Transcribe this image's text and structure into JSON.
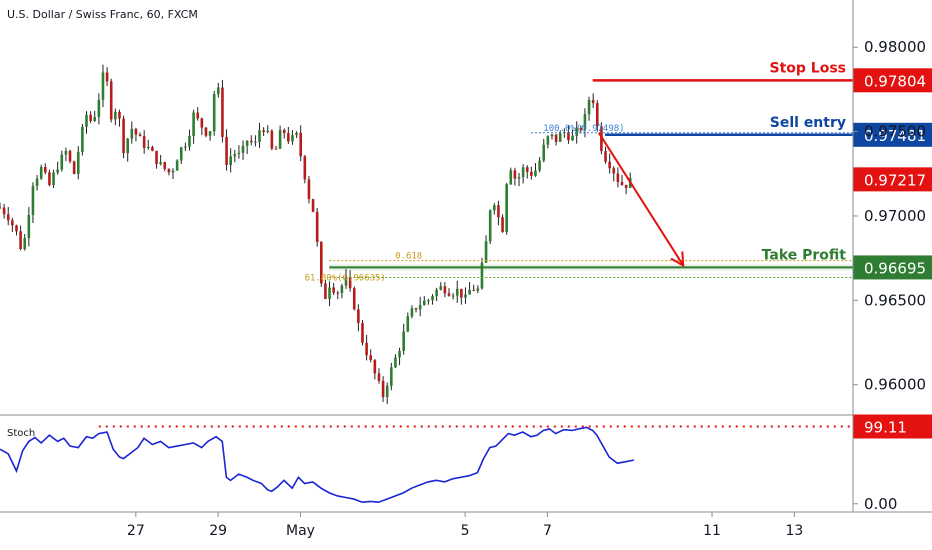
{
  "header": {
    "title": "U.S. Dollar / Swiss Franc, 60, FXCM"
  },
  "colors": {
    "bull": "#2e7d32",
    "bear": "#b71c1c",
    "stop": "#e3110f",
    "entry": "#0d47a1",
    "profit": "#2e7d32",
    "fib": "#c79a16",
    "stoch": "#1a25d4",
    "current": "#e3110f"
  },
  "chart_data": [
    {
      "type": "candlestick",
      "title": "U.S. Dollar / Swiss Franc, 60, FXCM",
      "ylim": [
        0.9585,
        0.9828
      ],
      "y_ticks": [
        "0.98000",
        "0.97500",
        "0.97000",
        "0.96500",
        "0.96000"
      ],
      "y_tick_values": [
        0.98,
        0.975,
        0.97,
        0.965,
        0.96
      ],
      "x_ticks": [
        "27",
        "29",
        "May",
        "5",
        "7",
        "11",
        "13"
      ],
      "x_tick_positions": [
        26.9,
        28.9,
        30.9,
        34.9,
        36.9,
        40.9,
        42.9
      ],
      "x_range": [
        23.6,
        44.3
      ],
      "close_path": [
        [
          23.6,
          0.9705
        ],
        [
          23.8,
          0.97
        ],
        [
          24.0,
          0.969
        ],
        [
          24.15,
          0.9678
        ],
        [
          24.4,
          0.972
        ],
        [
          24.6,
          0.9728
        ],
        [
          24.8,
          0.9718
        ],
        [
          25.0,
          0.973
        ],
        [
          25.2,
          0.9738
        ],
        [
          25.4,
          0.9725
        ],
        [
          25.55,
          0.9745
        ],
        [
          25.7,
          0.976
        ],
        [
          25.85,
          0.9755
        ],
        [
          26.0,
          0.977
        ],
        [
          26.15,
          0.9788
        ],
        [
          26.3,
          0.976
        ],
        [
          26.45,
          0.9765
        ],
        [
          26.6,
          0.974
        ],
        [
          26.8,
          0.9752
        ],
        [
          27.0,
          0.9745
        ],
        [
          27.2,
          0.974
        ],
        [
          27.5,
          0.973
        ],
        [
          27.75,
          0.9725
        ],
        [
          27.95,
          0.9738
        ],
        [
          28.15,
          0.9745
        ],
        [
          28.3,
          0.976
        ],
        [
          28.45,
          0.9755
        ],
        [
          28.6,
          0.975
        ],
        [
          28.75,
          0.9752
        ],
        [
          28.85,
          0.979
        ],
        [
          28.95,
          0.976
        ],
        [
          29.1,
          0.973
        ],
        [
          29.25,
          0.9738
        ],
        [
          29.45,
          0.9735
        ],
        [
          29.6,
          0.9745
        ],
        [
          29.8,
          0.9742
        ],
        [
          29.95,
          0.9755
        ],
        [
          30.1,
          0.9748
        ],
        [
          30.25,
          0.9735
        ],
        [
          30.45,
          0.9752
        ],
        [
          30.65,
          0.9744
        ],
        [
          30.8,
          0.9748
        ],
        [
          31.0,
          0.9725
        ],
        [
          31.1,
          0.9712
        ],
        [
          31.25,
          0.97
        ],
        [
          31.35,
          0.967
        ],
        [
          31.45,
          0.9648
        ],
        [
          31.6,
          0.966
        ],
        [
          31.8,
          0.9655
        ],
        [
          32.0,
          0.9662
        ],
        [
          32.2,
          0.9648
        ],
        [
          32.35,
          0.963
        ],
        [
          32.5,
          0.962
        ],
        [
          32.65,
          0.961
        ],
        [
          32.8,
          0.96
        ],
        [
          32.9,
          0.9593
        ],
        [
          33.05,
          0.9605
        ],
        [
          33.2,
          0.9615
        ],
        [
          33.35,
          0.9625
        ],
        [
          33.5,
          0.9638
        ],
        [
          33.65,
          0.9645
        ],
        [
          33.8,
          0.9648
        ],
        [
          34.0,
          0.965
        ],
        [
          34.15,
          0.9655
        ],
        [
          34.35,
          0.9658
        ],
        [
          34.55,
          0.9655
        ],
        [
          34.75,
          0.9656
        ],
        [
          34.9,
          0.965
        ],
        [
          35.05,
          0.9658
        ],
        [
          35.2,
          0.9655
        ],
        [
          35.35,
          0.9675
        ],
        [
          35.45,
          0.969
        ],
        [
          35.55,
          0.9715
        ],
        [
          35.7,
          0.97
        ],
        [
          35.8,
          0.969
        ],
        [
          35.9,
          0.972
        ],
        [
          36.0,
          0.973
        ],
        [
          36.15,
          0.972
        ],
        [
          36.3,
          0.9728
        ],
        [
          36.5,
          0.9725
        ],
        [
          36.65,
          0.9728
        ],
        [
          36.8,
          0.974
        ],
        [
          36.95,
          0.9748
        ],
        [
          37.1,
          0.9745
        ],
        [
          37.3,
          0.975
        ],
        [
          37.5,
          0.9746
        ],
        [
          37.7,
          0.9752
        ],
        [
          37.85,
          0.976
        ],
        [
          37.95,
          0.9775
        ],
        [
          38.05,
          0.9765
        ],
        [
          38.15,
          0.9745
        ],
        [
          38.3,
          0.9735
        ],
        [
          38.45,
          0.973
        ],
        [
          38.6,
          0.9722
        ],
        [
          38.75,
          0.9718
        ],
        [
          38.9,
          0.972
        ],
        [
          39.0,
          0.9722
        ]
      ]
    },
    {
      "type": "line",
      "name": "Stoch",
      "ylim": [
        -8,
        110
      ],
      "y_ticks": [
        "0.00"
      ],
      "y_tick_values": [
        0
      ],
      "x": [
        23.6,
        23.8,
        24.0,
        24.15,
        24.3,
        24.45,
        24.6,
        24.8,
        25.0,
        25.15,
        25.3,
        25.5,
        25.7,
        25.85,
        26.0,
        26.2,
        26.35,
        26.5,
        26.6,
        26.75,
        26.95,
        27.1,
        27.3,
        27.5,
        27.7,
        27.9,
        28.1,
        28.3,
        28.5,
        28.65,
        28.85,
        29.0,
        29.1,
        29.2,
        29.4,
        29.6,
        29.75,
        29.95,
        30.1,
        30.2,
        30.35,
        30.5,
        30.7,
        30.85,
        31.0,
        31.2,
        31.4,
        31.6,
        31.8,
        32.0,
        32.2,
        32.4,
        32.6,
        32.8,
        33.0,
        33.2,
        33.4,
        33.6,
        33.8,
        34.0,
        34.2,
        34.4,
        34.6,
        34.8,
        35.0,
        35.2,
        35.35,
        35.5,
        35.65,
        35.8,
        35.95,
        36.1,
        36.3,
        36.5,
        36.65,
        36.8,
        36.95,
        37.1,
        37.3,
        37.5,
        37.65,
        37.85,
        38.0,
        38.1,
        38.25,
        38.4,
        38.6,
        38.8,
        39.0
      ],
      "values": [
        70,
        64,
        42,
        68,
        80,
        85,
        78,
        88,
        80,
        84,
        74,
        72,
        86,
        84,
        90,
        92,
        70,
        60,
        58,
        64,
        72,
        84,
        76,
        80,
        72,
        74,
        76,
        78,
        72,
        80,
        86,
        80,
        34,
        30,
        38,
        34,
        30,
        26,
        18,
        16,
        22,
        30,
        20,
        34,
        26,
        28,
        20,
        14,
        10,
        8,
        6,
        2,
        3,
        2,
        6,
        10,
        14,
        20,
        24,
        28,
        30,
        28,
        32,
        34,
        36,
        40,
        58,
        72,
        74,
        82,
        90,
        88,
        92,
        86,
        88,
        94,
        96,
        90,
        95,
        94,
        96,
        98,
        94,
        88,
        74,
        60,
        52,
        54,
        56
      ],
      "overbought_value": "99.11",
      "overbought_level": 99.11
    }
  ],
  "annotations": {
    "stop_loss": {
      "label": "Stop Loss",
      "price": "0.97804",
      "value": 0.97804
    },
    "sell_entry": {
      "label": "Sell entry",
      "price": "0.97481",
      "value": 0.97481,
      "fib_label": "100.0%(0.97498)"
    },
    "current_price": {
      "price": "0.97217",
      "value": 0.97217
    },
    "take_profit": {
      "label": "Take Profit",
      "price": "0.96695",
      "value": 0.96695
    },
    "fib_618": {
      "label": "0.618",
      "value": 0.96735
    },
    "fib_786": {
      "label": "61.80%(0.96635)",
      "value": 0.96635
    }
  },
  "stoch_label": "Stoch"
}
